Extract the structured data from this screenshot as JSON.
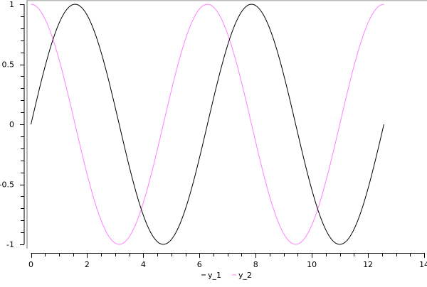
{
  "chart_data": {
    "type": "line",
    "title": "",
    "xlabel": "",
    "ylabel": "",
    "xlim": [
      0,
      14
    ],
    "ylim": [
      -1,
      1
    ],
    "x_ticks": [
      "0",
      "2",
      "4",
      "6",
      "8",
      "10",
      "12",
      "14"
    ],
    "y_ticks": [
      "-1",
      "-0.5",
      "0",
      "0.5",
      "1"
    ],
    "grid": false,
    "legend_position": "bottom",
    "x_range": [
      0,
      12.566
    ],
    "series": [
      {
        "name": "y_1",
        "function": "sin(x)",
        "color": "#000000"
      },
      {
        "name": "y_2",
        "function": "cos(x)",
        "color": "#ff80ff"
      }
    ]
  }
}
